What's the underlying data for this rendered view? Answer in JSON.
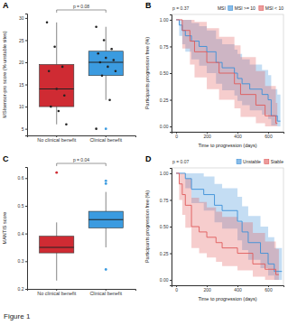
{
  "figure_label": "Figure 1",
  "chart_data": [
    {
      "type": "box",
      "panel": "A",
      "y_label": "MSIsensor-pro score (% unstable sites)",
      "categories": [
        "No clinical benefit",
        "Clinical benefit"
      ],
      "colors": [
        "#cf2b33",
        "#3b9be0"
      ],
      "boxes": [
        {
          "min": 6,
          "q1": 10,
          "median": 14,
          "q3": 19.5,
          "max": 29,
          "outliers": [],
          "points": [
            29,
            23.5,
            19,
            18,
            14,
            12.5,
            10,
            9,
            6
          ]
        },
        {
          "min": 11.5,
          "q1": 17,
          "median": 20,
          "q3": 22.5,
          "max": 28,
          "outliers": [
            5
          ],
          "points": [
            28,
            25,
            23,
            22,
            21,
            20.5,
            20,
            19,
            18,
            17,
            11.5,
            5
          ]
        }
      ],
      "ylim": [
        3.5,
        31
      ],
      "yticks": [
        5,
        10,
        15,
        20,
        25,
        30
      ],
      "annotation": "p = 0.08"
    },
    {
      "type": "survival",
      "panel": "B",
      "x_label": "Time to progression (days)",
      "y_label": "Participants progression free (%)",
      "legend": "top",
      "legend_title": "MSI",
      "annotation": "p = 0.37",
      "series": [
        {
          "name": "MSI >= 10",
          "color": "#3b8fd8",
          "x": [
            0,
            20,
            40,
            60,
            100,
            150,
            200,
            260,
            300,
            380,
            400,
            430,
            480,
            560,
            600,
            620,
            660,
            680
          ],
          "values": [
            1,
            0.95,
            0.9,
            0.85,
            0.8,
            0.75,
            0.7,
            0.6,
            0.55,
            0.5,
            0.45,
            0.4,
            0.35,
            0.3,
            0.25,
            0.1,
            0.05,
            0.05
          ],
          "lower": [
            1,
            0.85,
            0.77,
            0.7,
            0.63,
            0.57,
            0.5,
            0.4,
            0.34,
            0.29,
            0.24,
            0.2,
            0.15,
            0.11,
            0.07,
            0.01,
            0,
            0
          ],
          "upper": [
            1,
            1,
            1,
            1,
            0.97,
            0.94,
            0.9,
            0.82,
            0.77,
            0.72,
            0.68,
            0.63,
            0.58,
            0.53,
            0.48,
            0.35,
            0.3,
            0.3
          ]
        },
        {
          "name": "MSI < 10",
          "color": "#e05a5a",
          "x": [
            0,
            40,
            90,
            120,
            200,
            280,
            380,
            420,
            520,
            580,
            650,
            660
          ],
          "values": [
            1,
            0.9,
            0.8,
            0.7,
            0.6,
            0.5,
            0.4,
            0.3,
            0.2,
            0.1,
            0.03,
            0.03
          ],
          "lower": [
            1,
            0.73,
            0.58,
            0.46,
            0.35,
            0.25,
            0.17,
            0.09,
            0.03,
            0,
            0,
            0
          ],
          "upper": [
            1,
            1,
            1,
            0.98,
            0.92,
            0.84,
            0.76,
            0.65,
            0.52,
            0.38,
            0.22,
            0.22
          ]
        }
      ],
      "xlim": [
        -30,
        700
      ],
      "xticks": [
        0,
        200,
        400,
        600
      ],
      "ylim": [
        -0.05,
        1.05
      ],
      "yticks": [
        {
          "value": 0,
          "label": "0.00"
        },
        {
          "value": 0.25,
          "label": "0.25"
        },
        {
          "value": 0.5,
          "label": "0.50"
        },
        {
          "value": 0.75,
          "label": "0.75"
        },
        {
          "value": 1,
          "label": "1.00"
        }
      ]
    },
    {
      "type": "box",
      "panel": "C",
      "y_label": "MANTIS score",
      "categories": [
        "No clinical benefit",
        "Clinical benefit"
      ],
      "colors": [
        "#cf2b33",
        "#3b9be0"
      ],
      "boxes": [
        {
          "min": 0.23,
          "q1": 0.33,
          "median": 0.35,
          "q3": 0.39,
          "max": 0.44,
          "outliers": [
            0.62
          ]
        },
        {
          "min": 0.35,
          "q1": 0.42,
          "median": 0.45,
          "q3": 0.48,
          "max": 0.55,
          "outliers": [
            0.59,
            0.58,
            0.27
          ]
        }
      ],
      "ylim": [
        0.2,
        0.64
      ],
      "yticks": [
        0.2,
        0.3,
        0.4,
        0.5,
        0.6
      ],
      "annotation": "p = 0.04"
    },
    {
      "type": "survival",
      "panel": "D",
      "x_label": "Time to progression (days)",
      "y_label": "Participants progression free (%)",
      "legend": "top",
      "annotation": "p = 0.07",
      "series": [
        {
          "name": "Unstable",
          "color": "#3b8fd8",
          "x": [
            0,
            60,
            100,
            180,
            250,
            300,
            400,
            430,
            470,
            550,
            600,
            640,
            690
          ],
          "values": [
            1,
            0.95,
            0.85,
            0.8,
            0.7,
            0.65,
            0.55,
            0.45,
            0.35,
            0.25,
            0.15,
            0.08,
            0.08
          ],
          "lower": [
            1,
            0.86,
            0.72,
            0.65,
            0.54,
            0.48,
            0.37,
            0.28,
            0.19,
            0.11,
            0.04,
            0,
            0
          ],
          "upper": [
            1,
            1,
            1,
            0.97,
            0.9,
            0.86,
            0.78,
            0.69,
            0.6,
            0.5,
            0.4,
            0.3,
            0.3
          ]
        },
        {
          "name": "Stable",
          "color": "#e05a5a",
          "x": [
            0,
            20,
            40,
            60,
            100,
            150,
            200,
            260,
            300,
            400,
            500,
            580,
            650,
            670
          ],
          "values": [
            1,
            0.9,
            0.8,
            0.7,
            0.5,
            0.45,
            0.4,
            0.35,
            0.3,
            0.25,
            0.15,
            0.1,
            0.05,
            0.05
          ],
          "lower": [
            1,
            0.75,
            0.61,
            0.49,
            0.3,
            0.25,
            0.21,
            0.17,
            0.13,
            0.09,
            0.03,
            0,
            0,
            0
          ],
          "upper": [
            1,
            1,
            1,
            0.95,
            0.77,
            0.73,
            0.68,
            0.64,
            0.59,
            0.54,
            0.44,
            0.36,
            0.29,
            0.29
          ]
        }
      ],
      "xlim": [
        -30,
        700
      ],
      "xticks": [
        0,
        200,
        400,
        600
      ],
      "ylim": [
        -0.05,
        1.05
      ],
      "yticks": [
        {
          "value": 0,
          "label": "0.00"
        },
        {
          "value": 0.25,
          "label": "0.25"
        },
        {
          "value": 0.5,
          "label": "0.50"
        },
        {
          "value": 0.75,
          "label": "0.75"
        },
        {
          "value": 1,
          "label": "1.00"
        }
      ]
    }
  ]
}
